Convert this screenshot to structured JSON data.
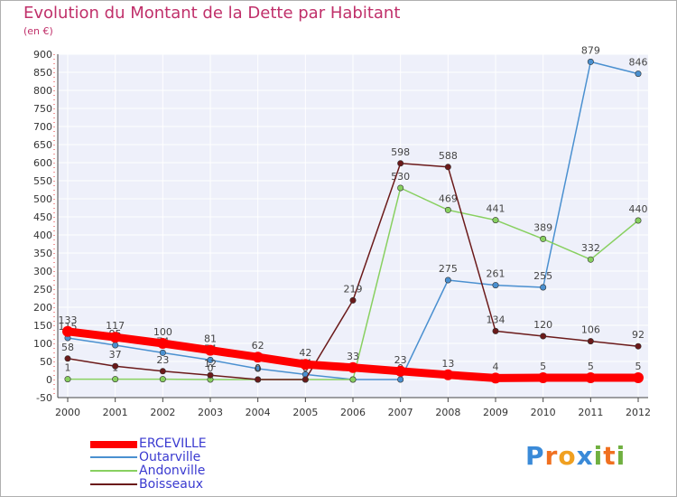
{
  "chart_data": {
    "type": "line",
    "title": "Evolution du Montant de la Dette par Habitant",
    "subtitle": "(en €)",
    "x": [
      "2000",
      "2001",
      "2002",
      "2003",
      "2004",
      "2005",
      "2006",
      "2007",
      "2008",
      "2009",
      "2010",
      "2011",
      "2012"
    ],
    "ylim": [
      -50,
      900
    ],
    "yticks": [
      -50,
      0,
      50,
      100,
      150,
      200,
      250,
      300,
      350,
      400,
      450,
      500,
      550,
      600,
      650,
      700,
      750,
      800,
      850,
      900
    ],
    "grid": true,
    "legend_position": "bottom-left",
    "series": [
      {
        "name": "Outarville",
        "color": "#4a90d0",
        "values": [
          115,
          95,
          74,
          54,
          30,
          14,
          0,
          0,
          275,
          261,
          255,
          879,
          846
        ],
        "labels": [
          "115",
          "95",
          "74",
          "54",
          "30",
          "14",
          "0",
          "0",
          "275",
          "261",
          "255",
          "879",
          "846"
        ]
      },
      {
        "name": "Andonville",
        "color": "#88d060",
        "values": [
          1,
          1,
          1,
          0,
          0,
          0,
          0,
          530,
          469,
          441,
          389,
          332,
          440
        ],
        "labels": [
          "1",
          "1",
          "",
          "0",
          "0",
          "0",
          "0",
          "530",
          "469",
          "441",
          "389",
          "332",
          "440"
        ]
      },
      {
        "name": "Boisseaux",
        "color": "#6b1a1a",
        "values": [
          58,
          37,
          23,
          12,
          0,
          0,
          219,
          598,
          588,
          134,
          120,
          106,
          92
        ],
        "labels": [
          "58",
          "37",
          "23",
          "12",
          "0",
          "0",
          "219",
          "598",
          "588",
          "134",
          "120",
          "106",
          "92"
        ]
      },
      {
        "name": "ERCEVILLE",
        "color": "#ff0000",
        "values": [
          133,
          117,
          100,
          81,
          62,
          42,
          33,
          23,
          13,
          4,
          5,
          5,
          5
        ],
        "labels": [
          "133",
          "117",
          "100",
          "81",
          "62",
          "42",
          "33",
          "23",
          "13",
          "4",
          "5",
          "5",
          "5"
        ],
        "bold": true
      }
    ]
  },
  "legend": {
    "items": [
      "ERCEVILLE",
      "Outarville",
      "Andonville",
      "Boisseaux"
    ]
  },
  "logo": {
    "letters": [
      "P",
      "r",
      "o",
      "x",
      "i",
      "t",
      "i"
    ],
    "colors": [
      "#3a8ad8",
      "#f07020",
      "#f0a020",
      "#3a8ad8",
      "#70b040",
      "#f07020",
      "#70b040"
    ]
  }
}
